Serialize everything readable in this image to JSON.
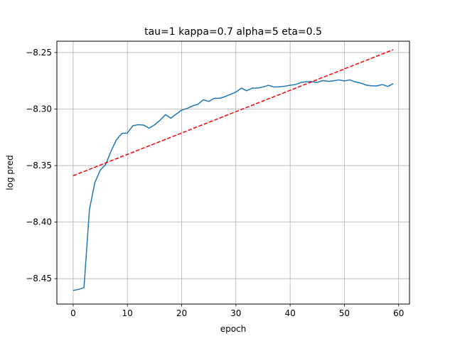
{
  "chart_data": {
    "type": "line",
    "title": "tau=1 kappa=0.7 alpha=5 eta=0.5",
    "xlabel": "epoch",
    "ylabel": "log pred",
    "xlim": [
      -3,
      62
    ],
    "ylim": [
      -8.4725,
      -8.24
    ],
    "xticks": [
      0,
      10,
      20,
      30,
      40,
      50,
      60
    ],
    "xtick_labels": [
      "0",
      "10",
      "20",
      "30",
      "40",
      "50",
      "60"
    ],
    "yticks": [
      -8.25,
      -8.3,
      -8.35,
      -8.4,
      -8.45
    ],
    "ytick_labels": [
      "−8.25",
      "−8.30",
      "−8.35",
      "−8.40",
      "−8.45"
    ],
    "grid": true,
    "series": [
      {
        "style": "solid",
        "color": "#1f77b4",
        "x": [
          0,
          1,
          2,
          3,
          4,
          5,
          6,
          7,
          8,
          9,
          10,
          11,
          12,
          13,
          14,
          15,
          16,
          17,
          18,
          19,
          20,
          21,
          22,
          23,
          24,
          25,
          26,
          27,
          28,
          29,
          30,
          31,
          32,
          33,
          34,
          35,
          36,
          37,
          38,
          39,
          40,
          41,
          42,
          43,
          44,
          45,
          46,
          47,
          48,
          49,
          50,
          51,
          52,
          53,
          54,
          55,
          56,
          57,
          58,
          59
        ],
        "values": [
          -8.4605,
          -8.4595,
          -8.458,
          -8.389,
          -8.365,
          -8.354,
          -8.349,
          -8.337,
          -8.327,
          -8.3215,
          -8.3212,
          -8.3148,
          -8.3138,
          -8.3142,
          -8.317,
          -8.314,
          -8.31,
          -8.305,
          -8.308,
          -8.3045,
          -8.301,
          -8.2995,
          -8.2972,
          -8.2958,
          -8.2918,
          -8.2933,
          -8.2905,
          -8.2905,
          -8.289,
          -8.287,
          -8.285,
          -8.2815,
          -8.2838,
          -8.2815,
          -8.2815,
          -8.2805,
          -8.279,
          -8.2805,
          -8.2803,
          -8.2798,
          -8.279,
          -8.2783,
          -8.2765,
          -8.2758,
          -8.2758,
          -8.2765,
          -8.2748,
          -8.2755,
          -8.275,
          -8.2742,
          -8.2752,
          -8.2742,
          -8.276,
          -8.277,
          -8.2788,
          -8.2795,
          -8.2795,
          -8.2783,
          -8.28,
          -8.2775
        ]
      },
      {
        "style": "dashed",
        "color": "#ff0000",
        "x": [
          0,
          59
        ],
        "values": [
          -8.359,
          -8.2475
        ]
      }
    ]
  }
}
